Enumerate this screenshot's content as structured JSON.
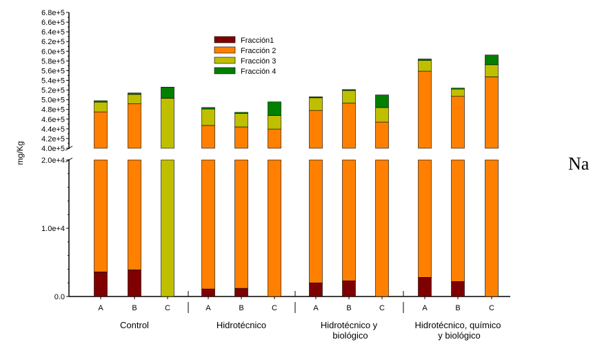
{
  "chart_data": {
    "type": "bar",
    "stacked": true,
    "broken_axis": true,
    "element_label": "Na",
    "ylabel": "mg/Kg",
    "legend_position": "top-center",
    "grid": false,
    "lower_axis": {
      "range": [
        0,
        20000
      ],
      "ticks": [
        0,
        10000,
        20000
      ],
      "tick_labels": [
        "0.0",
        "1.0e+4",
        "2.0e+4"
      ]
    },
    "upper_axis": {
      "range": [
        400000,
        680000
      ],
      "ticks": [
        400000,
        420000,
        440000,
        460000,
        480000,
        500000,
        520000,
        540000,
        560000,
        580000,
        600000,
        620000,
        640000,
        660000,
        680000
      ],
      "tick_labels": [
        "4.0e+5",
        "4.2e+5",
        "4.4e+5",
        "4.6e+5",
        "4.8e+5",
        "5.0e+5",
        "5.2e+5",
        "5.4e+5",
        "5.6e+5",
        "5.8e+5",
        "6.0e+5",
        "6.2e+5",
        "6.4e+5",
        "6.6e+5",
        "6.8e+5"
      ]
    },
    "groups": [
      {
        "label_lines": [
          "Control"
        ],
        "categories": [
          "A",
          "B",
          "C"
        ]
      },
      {
        "label_lines": [
          "Hidrotécnico"
        ],
        "categories": [
          "A",
          "B",
          "C"
        ]
      },
      {
        "label_lines": [
          "Hidrotécnico y",
          "biológico"
        ],
        "categories": [
          "A",
          "B",
          "C"
        ]
      },
      {
        "label_lines": [
          "Hidrotécnico, químico",
          "y  biológico"
        ],
        "categories": [
          "A",
          "B",
          "C"
        ]
      }
    ],
    "colors": {
      "Fracción1": "#7f0000",
      "Fracción 2": "#ff8000",
      "Fracción 3": "#bfbf00",
      "Fracción 4": "#007f00"
    },
    "series": [
      {
        "name": "Fracción1",
        "values": [
          3600,
          3900,
          0,
          1100,
          1200,
          0,
          2000,
          2300,
          0,
          2800,
          2200,
          0
        ]
      },
      {
        "name": "Fracción 2",
        "values": [
          471400,
          488100,
          0,
          445900,
          442800,
          439600,
          476000,
          490700,
          453900,
          556200,
          504800,
          547200
        ]
      },
      {
        "name": "Fracción 3",
        "values": [
          20000,
          19000,
          503000,
          34000,
          28000,
          28000,
          26000,
          26000,
          30000,
          22000,
          15000,
          25000
        ]
      },
      {
        "name": "Fracción 4",
        "values": [
          3000,
          3000,
          23000,
          3000,
          2000,
          28000,
          2000,
          2000,
          26000,
          3000,
          2000,
          20000
        ]
      }
    ]
  }
}
